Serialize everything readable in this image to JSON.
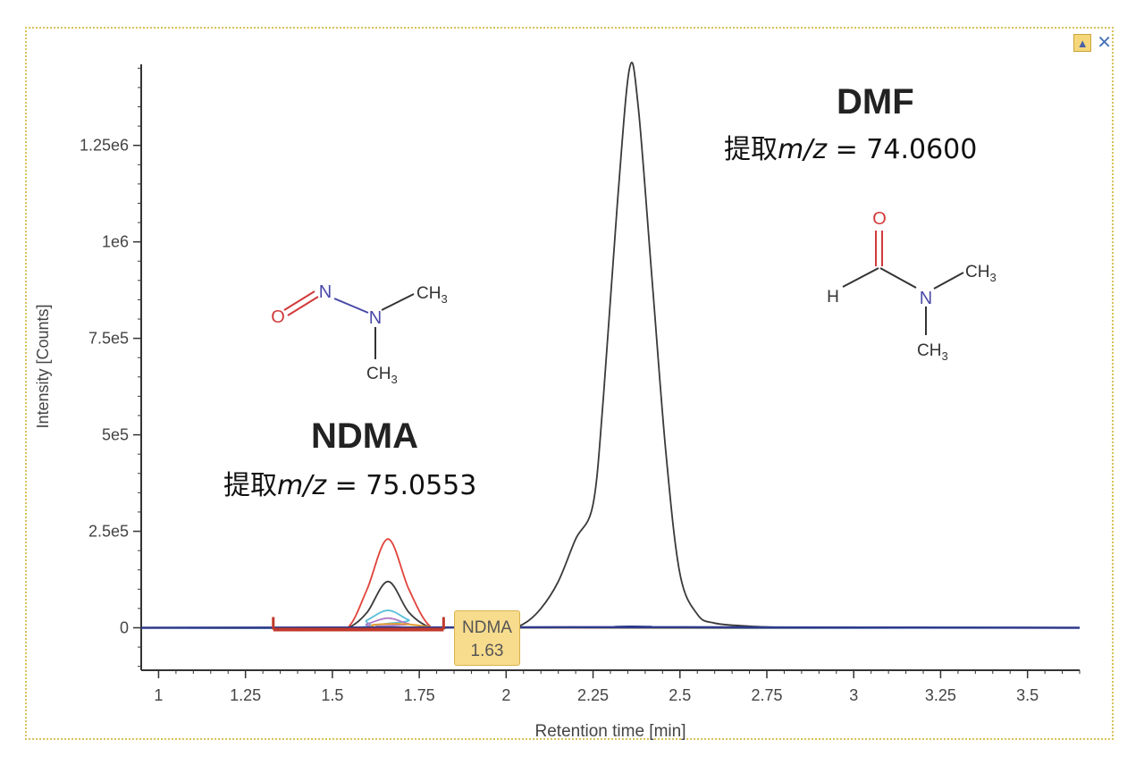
{
  "window": {
    "pin_icon": "pin-icon",
    "close_icon": "close-icon",
    "close_glyph": "✕"
  },
  "chart_data": {
    "type": "line",
    "xlabel": "Retention time [min]",
    "ylabel": "Intensity [Counts]",
    "xlim": [
      0.95,
      3.65
    ],
    "ylim": [
      -110000,
      1460000
    ],
    "x_ticks": [
      1,
      1.25,
      1.5,
      1.75,
      2,
      2.25,
      2.5,
      2.75,
      3,
      3.25,
      3.5
    ],
    "x_tick_labels": [
      "1",
      "1.25",
      "1.5",
      "1.75",
      "2",
      "2.25",
      "2.5",
      "2.75",
      "3",
      "3.25",
      "3.5"
    ],
    "y_ticks": [
      0,
      250000,
      500000,
      750000,
      1000000,
      1250000
    ],
    "y_tick_labels": [
      "0",
      "2.5e5",
      "5e5",
      "7.5e5",
      "1e6",
      "1.25e6"
    ],
    "series": [
      {
        "color": "#3a3a3a",
        "points": [
          [
            0.95,
            0
          ],
          [
            1.5,
            0
          ],
          [
            1.55,
            2000
          ],
          [
            1.6,
            40000
          ],
          [
            1.66,
            120000
          ],
          [
            1.72,
            40000
          ],
          [
            1.78,
            2000
          ],
          [
            1.85,
            0
          ],
          [
            2.0,
            0
          ],
          [
            2.05,
            10000
          ],
          [
            2.1,
            50000
          ],
          [
            2.15,
            120000
          ],
          [
            2.2,
            230000
          ],
          [
            2.25,
            320000
          ],
          [
            2.28,
            600000
          ],
          [
            2.32,
            1100000
          ],
          [
            2.355,
            1450000
          ],
          [
            2.38,
            1350000
          ],
          [
            2.42,
            900000
          ],
          [
            2.46,
            450000
          ],
          [
            2.5,
            140000
          ],
          [
            2.55,
            35000
          ],
          [
            2.6,
            12000
          ],
          [
            2.7,
            4000
          ],
          [
            2.8,
            1000
          ],
          [
            3.0,
            0
          ],
          [
            3.65,
            0
          ]
        ]
      },
      {
        "color": "#e0433b",
        "points": [
          [
            0.95,
            0
          ],
          [
            1.5,
            0
          ],
          [
            1.55,
            6000
          ],
          [
            1.6,
            100000
          ],
          [
            1.66,
            230000
          ],
          [
            1.72,
            100000
          ],
          [
            1.78,
            5000
          ],
          [
            1.85,
            0
          ],
          [
            3.65,
            0
          ]
        ]
      },
      {
        "color": "#5bc0d8",
        "points": [
          [
            0.95,
            0
          ],
          [
            1.55,
            0
          ],
          [
            1.6,
            20000
          ],
          [
            1.66,
            45000
          ],
          [
            1.72,
            20000
          ],
          [
            1.78,
            0
          ],
          [
            3.65,
            0
          ]
        ]
      },
      {
        "color": "#b07cc6",
        "points": [
          [
            0.95,
            0
          ],
          [
            1.55,
            0
          ],
          [
            1.6,
            10000
          ],
          [
            1.66,
            25000
          ],
          [
            1.72,
            10000
          ],
          [
            1.78,
            0
          ],
          [
            3.65,
            0
          ]
        ]
      },
      {
        "color": "#e59b2f",
        "points": [
          [
            0.95,
            0
          ],
          [
            1.55,
            0
          ],
          [
            1.62,
            8000
          ],
          [
            1.7,
            10000
          ],
          [
            1.78,
            3000
          ],
          [
            1.82,
            0
          ],
          [
            3.65,
            0
          ]
        ]
      },
      {
        "color": "#2d3a8c",
        "points": [
          [
            0.95,
            0
          ],
          [
            2.3,
            1500
          ],
          [
            2.36,
            3000
          ],
          [
            2.42,
            1500
          ],
          [
            3.65,
            0
          ]
        ]
      }
    ],
    "integration_range": {
      "color": "#c0392b",
      "x": [
        1.33,
        1.82
      ]
    },
    "peak_tag": {
      "name": "NDMA",
      "rt": "1.63",
      "x": 1.63
    },
    "compounds": [
      {
        "name": "DMF",
        "mz_prefix": "提取",
        "mz_var": "m/z",
        "mz_value": " = 74.0600"
      },
      {
        "name": "NDMA",
        "mz_prefix": "提取",
        "mz_var": "m/z",
        "mz_value": " = 75.0553"
      }
    ]
  },
  "structures": {
    "ndma": {
      "o": "O",
      "n1": "N",
      "n2": "N",
      "ch3_a": "CH",
      "ch3_b": "CH",
      "sub": "3"
    },
    "dmf": {
      "o": "O",
      "h": "H",
      "n": "N",
      "ch3_a": "CH",
      "ch3_b": "CH",
      "sub": "3"
    }
  }
}
